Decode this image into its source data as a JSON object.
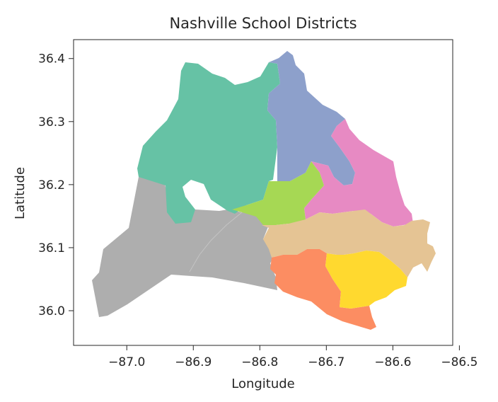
{
  "chart_data": {
    "type": "choropleth-map",
    "title": "Nashville School Districts",
    "xlabel": "Longitude",
    "ylabel": "Latitude",
    "xlim": [
      -87.08,
      -86.51
    ],
    "ylim": [
      35.945,
      36.43
    ],
    "x_ticks": [
      -87.0,
      -86.9,
      -86.8,
      -86.7,
      -86.6,
      -86.5
    ],
    "x_tick_labels": [
      "−87.0",
      "−86.9",
      "−86.8",
      "−86.7",
      "−86.6",
      "−86.5"
    ],
    "y_ticks": [
      36.0,
      36.1,
      36.2,
      36.3,
      36.4
    ],
    "y_tick_labels": [
      "36.0",
      "36.1",
      "36.2",
      "36.3",
      "36.4"
    ],
    "grid": false,
    "legend": "none",
    "colormap": "Set2",
    "district_colors": [
      "#aeaeae",
      "#66c2a5",
      "#8da0cb",
      "#e78ac3",
      "#a6d854",
      "#e5c494",
      "#fc8d62",
      "#ffd92f"
    ]
  }
}
